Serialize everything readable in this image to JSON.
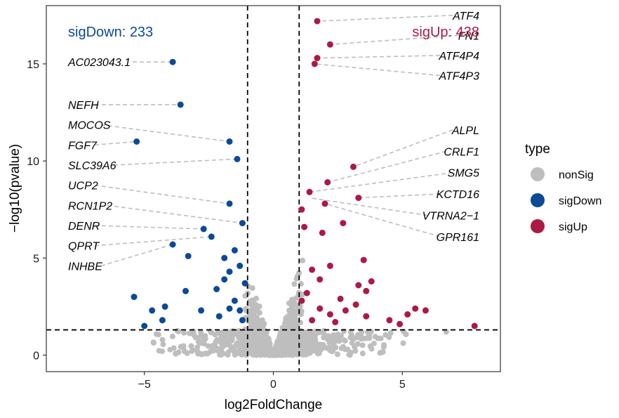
{
  "chart_data": {
    "type": "scatter",
    "title": "",
    "xlabel": "log2FoldChange",
    "ylabel": "−log10(pvalue)",
    "xlim": [
      -8.8,
      8.8
    ],
    "ylim": [
      -0.85,
      18.0
    ],
    "x_ticks": [
      -5,
      0,
      5
    ],
    "y_ticks": [
      0,
      5,
      10,
      15
    ],
    "x_tick_labels": [
      "−5",
      "0",
      "5"
    ],
    "y_tick_labels": [
      "0",
      "5",
      "10",
      "15"
    ],
    "thresholds": {
      "log2fc": [
        -1,
        1
      ],
      "neg_log10_p": 1.3
    },
    "grid": false,
    "legend_position": "right",
    "legend": {
      "title": "type",
      "entries": [
        {
          "label": "nonSig",
          "color": "#bebebe"
        },
        {
          "label": "sigDown",
          "color": "#0b4a96"
        },
        {
          "label": "sigUp",
          "color": "#ac1a44"
        }
      ]
    },
    "annotations": {
      "sig_down_text": "sigDown: 233",
      "sig_up_text": "sigUp: 438"
    },
    "series": [
      {
        "name": "sigDown",
        "color": "#0b4a96",
        "points": [
          {
            "x": -3.9,
            "y": 15.1
          },
          {
            "x": -3.6,
            "y": 12.9
          },
          {
            "x": -5.3,
            "y": 11.0
          },
          {
            "x": -1.7,
            "y": 11.0
          },
          {
            "x": -1.4,
            "y": 10.1
          },
          {
            "x": -1.7,
            "y": 7.8
          },
          {
            "x": -1.2,
            "y": 6.8
          },
          {
            "x": -2.7,
            "y": 6.5
          },
          {
            "x": -2.4,
            "y": 6.1
          },
          {
            "x": -3.9,
            "y": 5.7
          },
          {
            "x": -3.3,
            "y": 5.1
          },
          {
            "x": -5.4,
            "y": 3.0
          },
          {
            "x": -4.7,
            "y": 2.3
          },
          {
            "x": -4.2,
            "y": 2.5
          },
          {
            "x": -3.4,
            "y": 3.3
          },
          {
            "x": -2.2,
            "y": 3.4
          },
          {
            "x": -2.8,
            "y": 2.3
          },
          {
            "x": -2.1,
            "y": 2.0
          },
          {
            "x": -1.9,
            "y": 3.9
          },
          {
            "x": -1.7,
            "y": 4.3
          },
          {
            "x": -1.9,
            "y": 5.0
          },
          {
            "x": -1.5,
            "y": 5.4
          },
          {
            "x": -1.3,
            "y": 4.6
          },
          {
            "x": -1.1,
            "y": 3.7
          },
          {
            "x": -1.3,
            "y": 2.3
          },
          {
            "x": -1.5,
            "y": 2.8
          },
          {
            "x": -1.2,
            "y": 1.8
          },
          {
            "x": -1.7,
            "y": 2.4
          },
          {
            "x": -5.0,
            "y": 1.5
          },
          {
            "x": -4.3,
            "y": 1.8
          }
        ]
      },
      {
        "name": "sigUp",
        "color": "#ac1a44",
        "points": [
          {
            "x": 1.7,
            "y": 17.2
          },
          {
            "x": 2.2,
            "y": 16.0
          },
          {
            "x": 1.7,
            "y": 15.3
          },
          {
            "x": 1.6,
            "y": 15.0
          },
          {
            "x": 3.1,
            "y": 9.7
          },
          {
            "x": 2.1,
            "y": 8.9
          },
          {
            "x": 1.4,
            "y": 8.4
          },
          {
            "x": 3.3,
            "y": 8.1
          },
          {
            "x": 2.0,
            "y": 7.8
          },
          {
            "x": 1.1,
            "y": 7.5
          },
          {
            "x": 2.7,
            "y": 6.8
          },
          {
            "x": 1.9,
            "y": 6.3
          },
          {
            "x": 1.2,
            "y": 6.6
          },
          {
            "x": 3.5,
            "y": 4.9
          },
          {
            "x": 2.2,
            "y": 4.6
          },
          {
            "x": 1.5,
            "y": 4.4
          },
          {
            "x": 1.8,
            "y": 3.9
          },
          {
            "x": 3.3,
            "y": 3.6
          },
          {
            "x": 3.8,
            "y": 3.8
          },
          {
            "x": 3.6,
            "y": 3.3
          },
          {
            "x": 2.6,
            "y": 2.9
          },
          {
            "x": 1.3,
            "y": 3.2
          },
          {
            "x": 1.8,
            "y": 2.4
          },
          {
            "x": 2.2,
            "y": 2.1
          },
          {
            "x": 2.8,
            "y": 2.3
          },
          {
            "x": 3.2,
            "y": 2.6
          },
          {
            "x": 3.6,
            "y": 2.0
          },
          {
            "x": 4.5,
            "y": 1.8
          },
          {
            "x": 5.2,
            "y": 2.1
          },
          {
            "x": 5.5,
            "y": 2.4
          },
          {
            "x": 5.9,
            "y": 2.3
          },
          {
            "x": 4.9,
            "y": 1.6
          },
          {
            "x": 7.8,
            "y": 1.5
          },
          {
            "x": 1.5,
            "y": 1.8
          },
          {
            "x": 1.1,
            "y": 2.8
          },
          {
            "x": 2.4,
            "y": 1.7
          }
        ]
      }
    ],
    "labels": [
      {
        "text": "ATF4",
        "x": 1.7,
        "y": 17.2,
        "side": "right"
      },
      {
        "text": "FN1",
        "x": 2.2,
        "y": 16.0,
        "side": "right"
      },
      {
        "text": "ATF4P4",
        "x": 1.7,
        "y": 15.3,
        "side": "right"
      },
      {
        "text": "ATF4P3",
        "x": 1.6,
        "y": 15.0,
        "side": "right"
      },
      {
        "text": "ALPL",
        "x": 3.1,
        "y": 9.7,
        "side": "right"
      },
      {
        "text": "CRLF1",
        "x": 2.1,
        "y": 8.9,
        "side": "right"
      },
      {
        "text": "SMG5",
        "x": 1.4,
        "y": 8.4,
        "side": "right"
      },
      {
        "text": "KCTD16",
        "x": 3.3,
        "y": 8.1,
        "side": "right"
      },
      {
        "text": "VTRNA2−1",
        "x": 1.4,
        "y": 8.1,
        "side": "right"
      },
      {
        "text": "GPR161",
        "x": 2.0,
        "y": 7.8,
        "side": "right"
      },
      {
        "text": "AC023043.1",
        "x": -3.9,
        "y": 15.1,
        "side": "left"
      },
      {
        "text": "NEFH",
        "x": -3.6,
        "y": 12.9,
        "side": "left"
      },
      {
        "text": "MOCOS",
        "x": -1.7,
        "y": 11.0,
        "side": "left"
      },
      {
        "text": "FGF7",
        "x": -5.3,
        "y": 11.0,
        "side": "left"
      },
      {
        "text": "SLC39A6",
        "x": -1.4,
        "y": 10.1,
        "side": "left"
      },
      {
        "text": "UCP2",
        "x": -1.7,
        "y": 7.8,
        "side": "left"
      },
      {
        "text": "RCN1P2",
        "x": -1.2,
        "y": 6.8,
        "side": "left"
      },
      {
        "text": "DENR",
        "x": -2.7,
        "y": 6.5,
        "side": "left"
      },
      {
        "text": "QPRT",
        "x": -2.4,
        "y": 6.1,
        "side": "left"
      },
      {
        "text": "INHBE",
        "x": -3.9,
        "y": 5.7,
        "side": "left"
      }
    ]
  }
}
